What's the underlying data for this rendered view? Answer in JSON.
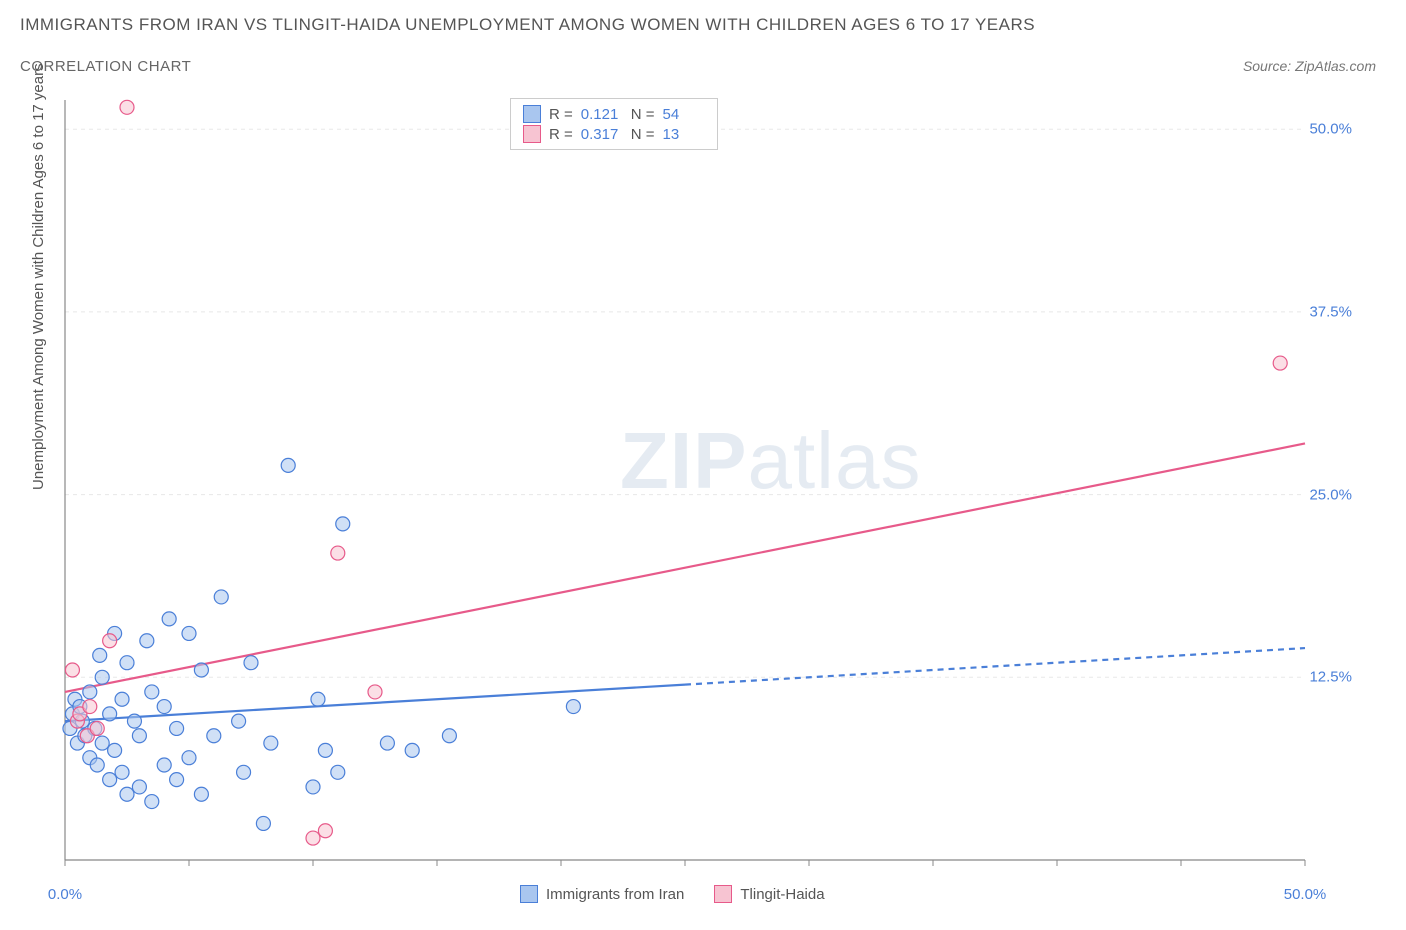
{
  "title": "IMMIGRANTS FROM IRAN VS TLINGIT-HAIDA UNEMPLOYMENT AMONG WOMEN WITH CHILDREN AGES 6 TO 17 YEARS",
  "subtitle": "CORRELATION CHART",
  "source": "Source: ZipAtlas.com",
  "ylabel": "Unemployment Among Women with Children Ages 6 to 17 years",
  "watermark_bold": "ZIP",
  "watermark_rest": "atlas",
  "chart": {
    "type": "scatter",
    "xlim": [
      0,
      50
    ],
    "ylim": [
      0,
      52
    ],
    "xticks": [
      0,
      50
    ],
    "xtick_labels": [
      "0.0%",
      "50.0%"
    ],
    "yticks": [
      12.5,
      25.0,
      37.5,
      50.0
    ],
    "ytick_labels": [
      "12.5%",
      "25.0%",
      "37.5%",
      "50.0%"
    ],
    "xminor_ticks": [
      5,
      10,
      15,
      20,
      25,
      30,
      35,
      40,
      45
    ],
    "grid_color": "#e8e8e8",
    "axis_color": "#888888",
    "background_color": "#ffffff",
    "marker_radius": 7,
    "marker_opacity": 0.55,
    "marker_stroke_width": 1.2,
    "series_a": {
      "name": "Immigrants from Iran",
      "fill": "#a9c6ef",
      "stroke": "#4a7fd8",
      "R": "0.121",
      "N": "54",
      "line": {
        "x1": 0,
        "y1": 9.5,
        "x2": 25,
        "y2": 12.0,
        "dash_x1": 25,
        "dash_y1": 12.0,
        "dash_x2": 50,
        "dash_y2": 14.5,
        "width": 2.2
      },
      "points": [
        [
          0.2,
          9.0
        ],
        [
          0.3,
          10.0
        ],
        [
          0.4,
          11.0
        ],
        [
          0.5,
          8.0
        ],
        [
          0.6,
          10.5
        ],
        [
          0.7,
          9.5
        ],
        [
          0.8,
          8.5
        ],
        [
          1.0,
          7.0
        ],
        [
          1.0,
          11.5
        ],
        [
          1.2,
          9.0
        ],
        [
          1.3,
          6.5
        ],
        [
          1.4,
          14.0
        ],
        [
          1.5,
          8.0
        ],
        [
          1.5,
          12.5
        ],
        [
          1.8,
          5.5
        ],
        [
          1.8,
          10.0
        ],
        [
          2.0,
          7.5
        ],
        [
          2.0,
          15.5
        ],
        [
          2.3,
          6.0
        ],
        [
          2.3,
          11.0
        ],
        [
          2.5,
          4.5
        ],
        [
          2.5,
          13.5
        ],
        [
          2.8,
          9.5
        ],
        [
          3.0,
          5.0
        ],
        [
          3.0,
          8.5
        ],
        [
          3.3,
          15.0
        ],
        [
          3.5,
          4.0
        ],
        [
          3.5,
          11.5
        ],
        [
          4.0,
          6.5
        ],
        [
          4.0,
          10.5
        ],
        [
          4.2,
          16.5
        ],
        [
          4.5,
          5.5
        ],
        [
          4.5,
          9.0
        ],
        [
          5.0,
          7.0
        ],
        [
          5.0,
          15.5
        ],
        [
          5.5,
          4.5
        ],
        [
          5.5,
          13.0
        ],
        [
          6.0,
          8.5
        ],
        [
          6.3,
          18.0
        ],
        [
          7.0,
          9.5
        ],
        [
          7.2,
          6.0
        ],
        [
          7.5,
          13.5
        ],
        [
          8.0,
          2.5
        ],
        [
          8.3,
          8.0
        ],
        [
          9.0,
          27.0
        ],
        [
          10.0,
          5.0
        ],
        [
          10.2,
          11.0
        ],
        [
          10.5,
          7.5
        ],
        [
          11.0,
          6.0
        ],
        [
          11.2,
          23.0
        ],
        [
          13.0,
          8.0
        ],
        [
          14.0,
          7.5
        ],
        [
          15.5,
          8.5
        ],
        [
          20.5,
          10.5
        ]
      ]
    },
    "series_b": {
      "name": "Tlingit-Haida",
      "fill": "#f7c4d2",
      "stroke": "#e75a8a",
      "R": "0.317",
      "N": "13",
      "line": {
        "x1": 0,
        "y1": 11.5,
        "x2": 50,
        "y2": 28.5,
        "width": 2.2
      },
      "points": [
        [
          0.3,
          13.0
        ],
        [
          0.5,
          9.5
        ],
        [
          0.6,
          10.0
        ],
        [
          0.9,
          8.5
        ],
        [
          1.0,
          10.5
        ],
        [
          1.3,
          9.0
        ],
        [
          1.8,
          15.0
        ],
        [
          2.5,
          51.5
        ],
        [
          10.0,
          1.5
        ],
        [
          10.5,
          2.0
        ],
        [
          11.0,
          21.0
        ],
        [
          12.5,
          11.5
        ],
        [
          49.0,
          34.0
        ]
      ]
    }
  },
  "stats_box": {
    "R_label": "R =",
    "N_label": "N ="
  }
}
